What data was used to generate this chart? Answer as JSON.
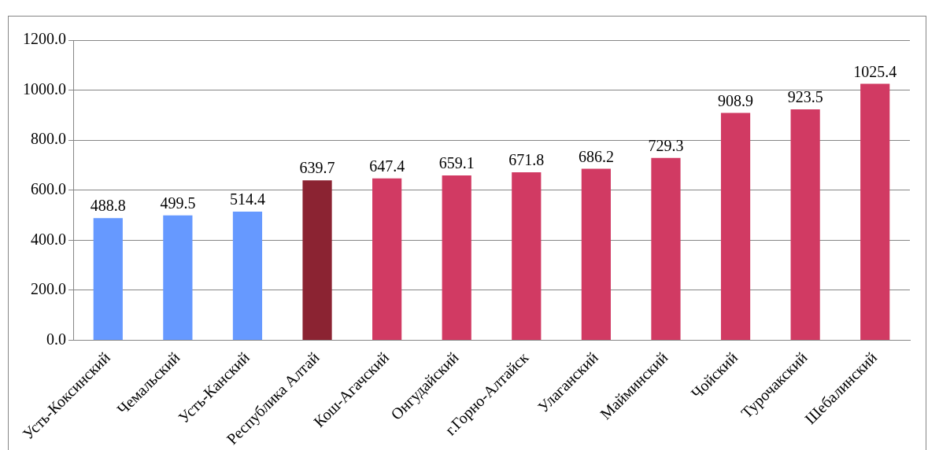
{
  "chart_data": {
    "type": "bar",
    "categories": [
      "Усть-Коксинский",
      "Чемальский",
      "Усть-Канский",
      "Республика Алтай",
      "Кош-Агачский",
      "Онгудайский",
      "г.Горно-Алтайск",
      "Улаганский",
      "Майминский",
      "Чойский",
      "Турочакский",
      "Шебалинский"
    ],
    "values": [
      488.8,
      499.5,
      514.4,
      639.7,
      647.4,
      659.1,
      671.8,
      686.2,
      729.3,
      908.9,
      923.5,
      1025.4
    ],
    "colors": [
      "#6699ff",
      "#6699ff",
      "#6699ff",
      "#8b2332",
      "#d13a63",
      "#d13a63",
      "#d13a63",
      "#d13a63",
      "#d13a63",
      "#d13a63",
      "#d13a63",
      "#d13a63"
    ],
    "ylim": [
      0,
      1200
    ],
    "yticks": [
      {
        "value": 0,
        "label": "0.0"
      },
      {
        "value": 200,
        "label": "200.0"
      },
      {
        "value": 400,
        "label": "400.0"
      },
      {
        "value": 600,
        "label": "600.0"
      },
      {
        "value": 800,
        "label": "800.0"
      },
      {
        "value": 1000,
        "label": "1000.0"
      },
      {
        "value": 1200,
        "label": "1200.0"
      }
    ],
    "grid": "y",
    "data_labels": true,
    "legend": false
  }
}
